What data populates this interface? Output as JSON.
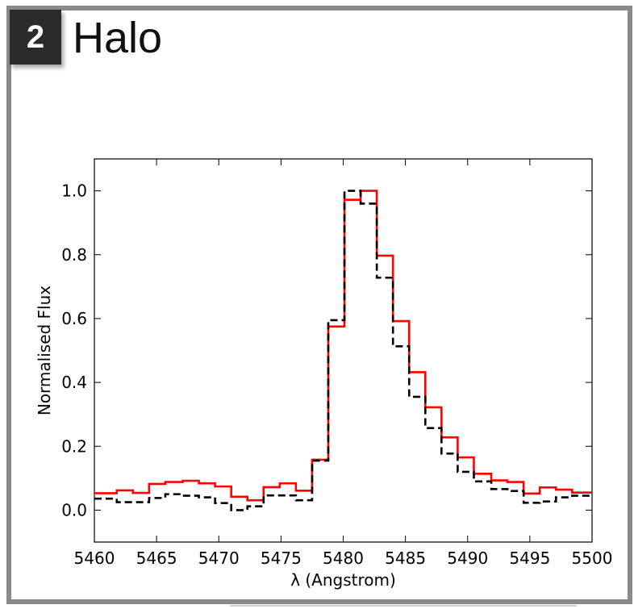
{
  "panel": {
    "badge": "2",
    "title": "Halo"
  },
  "chart_data": {
    "type": "line",
    "step": true,
    "xlabel": "λ (Angstrom)",
    "ylabel": "Normalised Flux",
    "xlim": [
      5460,
      5500
    ],
    "ylim": [
      -0.1,
      1.1
    ],
    "xticks": [
      5460,
      5465,
      5470,
      5475,
      5480,
      5485,
      5490,
      5495,
      5500
    ],
    "xtick_labels": [
      "5460",
      "5465",
      "5470",
      "5475",
      "5480",
      "5485",
      "5490",
      "5495",
      "5500"
    ],
    "yticks": [
      0.0,
      0.2,
      0.4,
      0.6,
      0.8,
      1.0
    ],
    "ytick_labels": [
      "0.0",
      "0.2",
      "0.4",
      "0.6",
      "0.8",
      "1.0"
    ],
    "series": [
      {
        "style": "solid",
        "color": "#ff0000",
        "edges": [
          5460,
          5461.8,
          5463.1,
          5464.4,
          5465.7,
          5467.1,
          5468.4,
          5469.7,
          5471.0,
          5472.3,
          5473.6,
          5474.9,
          5476.2,
          5477.5,
          5478.8,
          5480.1,
          5481.4,
          5482.7,
          5484.0,
          5485.3,
          5486.6,
          5487.9,
          5489.2,
          5490.5,
          5491.9,
          5493.2,
          5494.5,
          5495.8,
          5497.1,
          5498.4,
          5500
        ],
        "values": [
          0.053,
          0.062,
          0.054,
          0.082,
          0.088,
          0.092,
          0.084,
          0.074,
          0.042,
          0.031,
          0.072,
          0.084,
          0.061,
          0.158,
          0.575,
          0.972,
          1.0,
          0.797,
          0.592,
          0.432,
          0.322,
          0.228,
          0.165,
          0.114,
          0.093,
          0.088,
          0.052,
          0.071,
          0.064,
          0.055
        ]
      },
      {
        "style": "dashed",
        "color": "#000000",
        "edges": [
          5460,
          5461.8,
          5463.1,
          5464.4,
          5465.7,
          5467.1,
          5468.4,
          5469.7,
          5471.0,
          5472.3,
          5473.6,
          5474.9,
          5476.2,
          5477.5,
          5478.8,
          5480.1,
          5481.4,
          5482.7,
          5484.0,
          5485.3,
          5486.6,
          5487.9,
          5489.2,
          5490.5,
          5491.9,
          5493.2,
          5494.5,
          5495.8,
          5497.1,
          5498.4,
          5500
        ],
        "values": [
          0.036,
          0.025,
          0.025,
          0.038,
          0.05,
          0.045,
          0.04,
          0.022,
          0.0,
          0.012,
          0.046,
          0.046,
          0.031,
          0.155,
          0.595,
          1.0,
          0.96,
          0.728,
          0.513,
          0.355,
          0.257,
          0.177,
          0.12,
          0.09,
          0.066,
          0.06,
          0.023,
          0.027,
          0.04,
          0.045
        ]
      }
    ]
  }
}
